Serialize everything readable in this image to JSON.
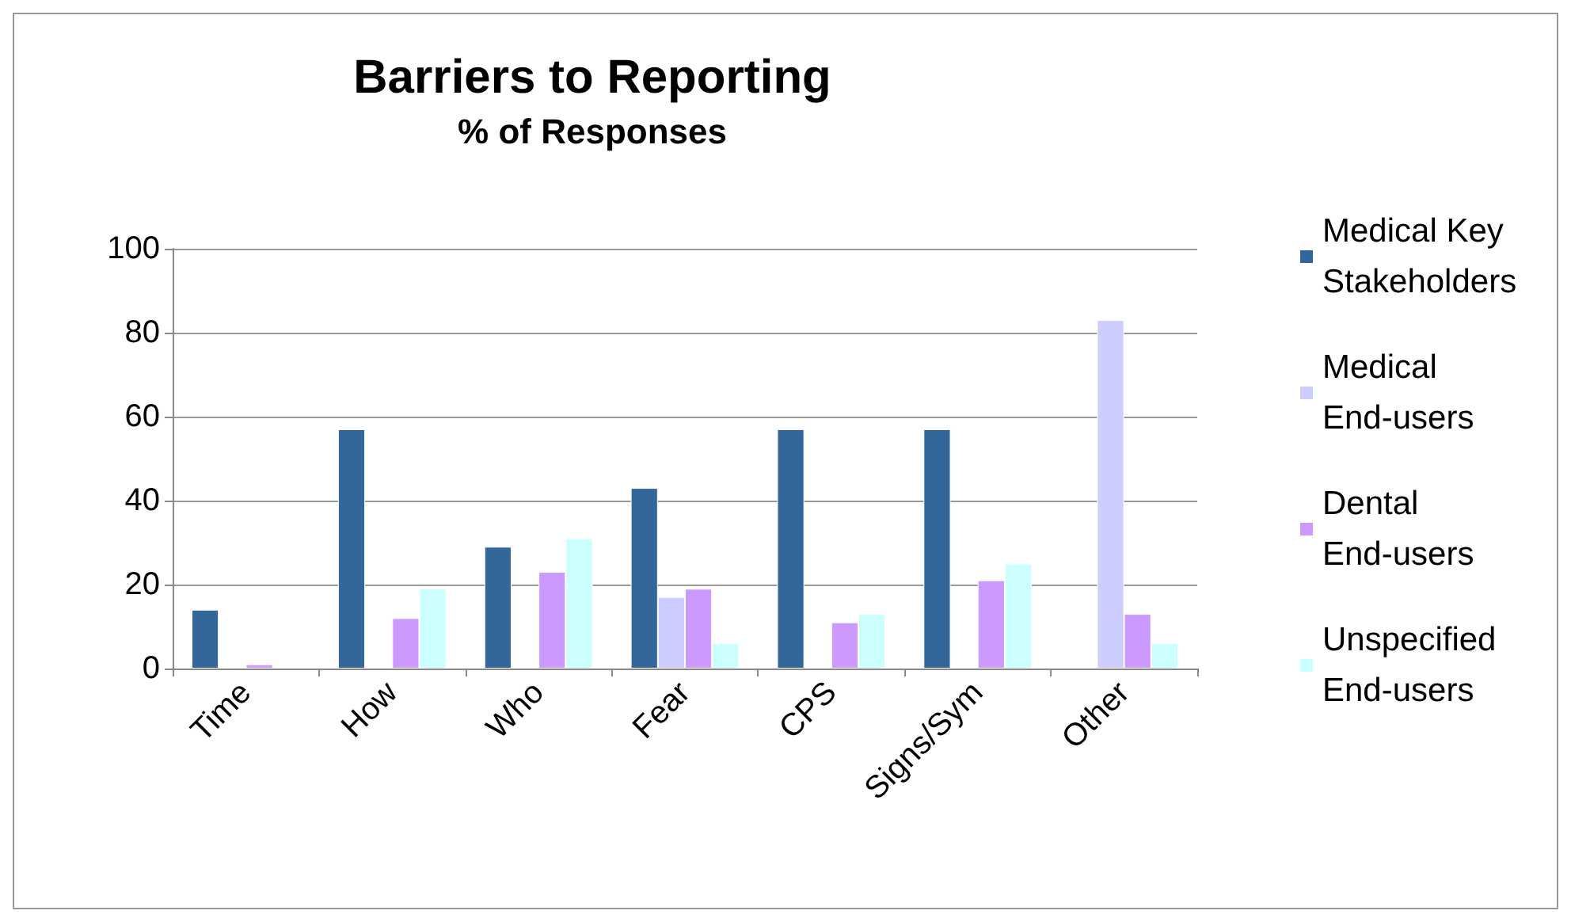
{
  "chart_data": {
    "type": "bar",
    "title": "Barriers to Reporting",
    "subtitle": "% of Responses",
    "categories": [
      "Time",
      "How",
      "Who",
      "Fear",
      "CPS",
      "Signs/Sym",
      "Other"
    ],
    "series": [
      {
        "name": "Medical Key Stakeholders",
        "color": "#336699",
        "values": [
          14,
          57,
          29,
          43,
          57,
          57,
          null
        ]
      },
      {
        "name": "Medical End-users",
        "color": "#ccccff",
        "values": [
          null,
          null,
          null,
          17,
          null,
          null,
          83
        ]
      },
      {
        "name": "Dental End-users",
        "color": "#cc99ff",
        "values": [
          1,
          12,
          23,
          19,
          11,
          21,
          13
        ]
      },
      {
        "name": "Unspecified End-users",
        "color": "#ccffff",
        "values": [
          null,
          19,
          31,
          6,
          13,
          25,
          6
        ]
      }
    ],
    "ylim": [
      0,
      100
    ],
    "yticks": [
      0,
      20,
      40,
      60,
      80,
      100
    ],
    "grid": "y",
    "legend": "right"
  }
}
